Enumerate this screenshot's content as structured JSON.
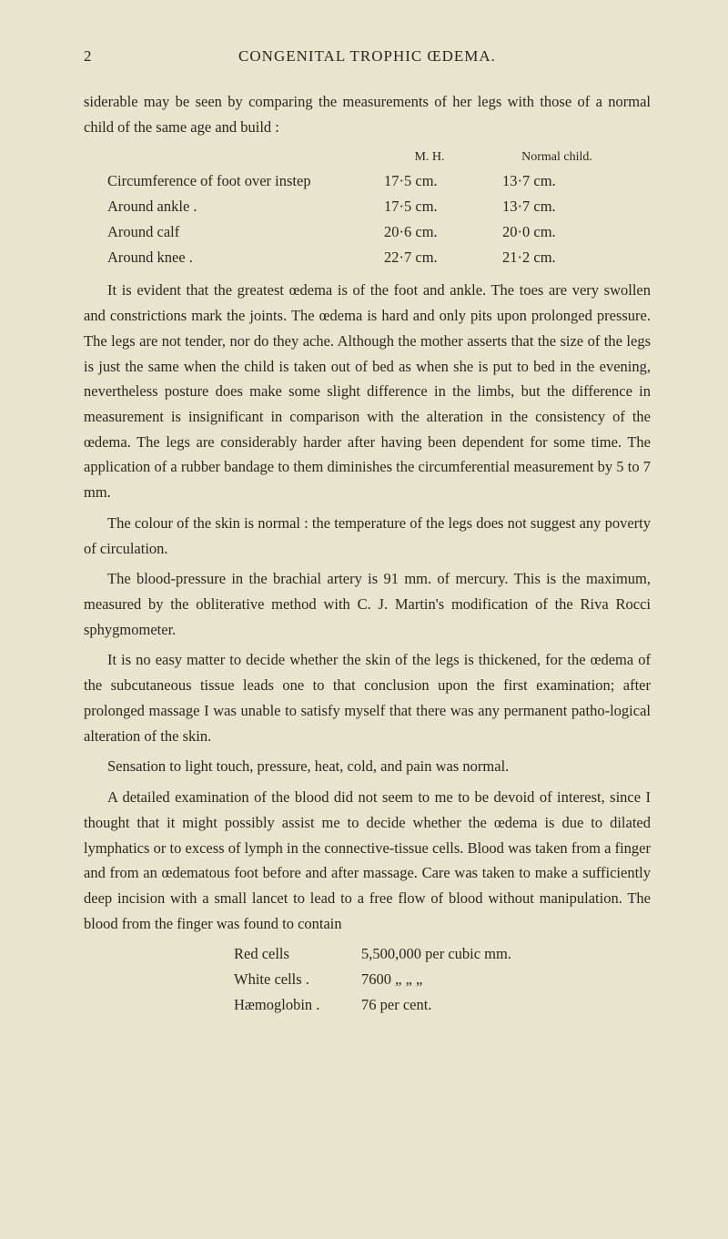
{
  "page_number": "2",
  "header": "CONGENITAL TROPHIC ŒDEMA.",
  "para1": "siderable may be seen by comparing the measurements of her legs with those of a normal child of the same age and build :",
  "table": {
    "header_col2": "M. H.",
    "header_col3": "Normal child.",
    "rows": [
      {
        "label": "Circumference of foot over instep",
        "c2": "17·5 cm.",
        "c3": "13·7 cm."
      },
      {
        "label": "Around ankle .",
        "c2": "17·5 cm.",
        "c3": "13·7 cm."
      },
      {
        "label": "Around calf",
        "c2": "20·6 cm.",
        "c3": "20·0 cm."
      },
      {
        "label": "Around knee .",
        "c2": "22·7 cm.",
        "c3": "21·2 cm."
      }
    ]
  },
  "para2": "It is evident that the greatest œdema is of the foot and ankle. The toes are very swollen and constrictions mark the joints. The œdema is hard and only pits upon prolonged pressure. The legs are not tender, nor do they ache. Although the mother asserts that the size of the legs is just the same when the child is taken out of bed as when she is put to bed in the evening, nevertheless posture does make some slight difference in the limbs, but the difference in measurement is insignificant in comparison with the alteration in the consistency of the œdema. The legs are considerably harder after having been dependent for some time. The application of a rubber bandage to them diminishes the circumferential measurement by 5 to 7 mm.",
  "para3": "The colour of the skin is normal : the temperature of the legs does not suggest any poverty of circulation.",
  "para4": "The blood-pressure in the brachial artery is 91 mm. of mercury. This is the maximum, measured by the obliterative method with C. J. Martin's modification of the Riva Rocci sphygmometer.",
  "para5": "It is no easy matter to decide whether the skin of the legs is thickened, for the œdema of the subcutaneous tissue leads one to that conclusion upon the first examination; after prolonged massage I was unable to satisfy myself that there was any permanent patho-logical alteration of the skin.",
  "para6": "Sensation to light touch, pressure, heat, cold, and pain was normal.",
  "para7": "A detailed examination of the blood did not seem to me to be devoid of interest, since I thought that it might possibly assist me to decide whether the œdema is due to dilated lymphatics or to excess of lymph in the connective-tissue cells. Blood was taken from a finger and from an œdematous foot before and after massage. Care was taken to make a sufficiently deep incision with a small lancet to lead to a free flow of blood without manipulation. The blood from the finger was found to contain",
  "blood": {
    "rows": [
      {
        "label": "Red cells",
        "val": "5,500,000 per cubic mm."
      },
      {
        "label": "White cells   .",
        "val": "  7600   „    „    „"
      },
      {
        "label": "Hæmoglobin .",
        "val": "     76 per cent."
      }
    ]
  }
}
